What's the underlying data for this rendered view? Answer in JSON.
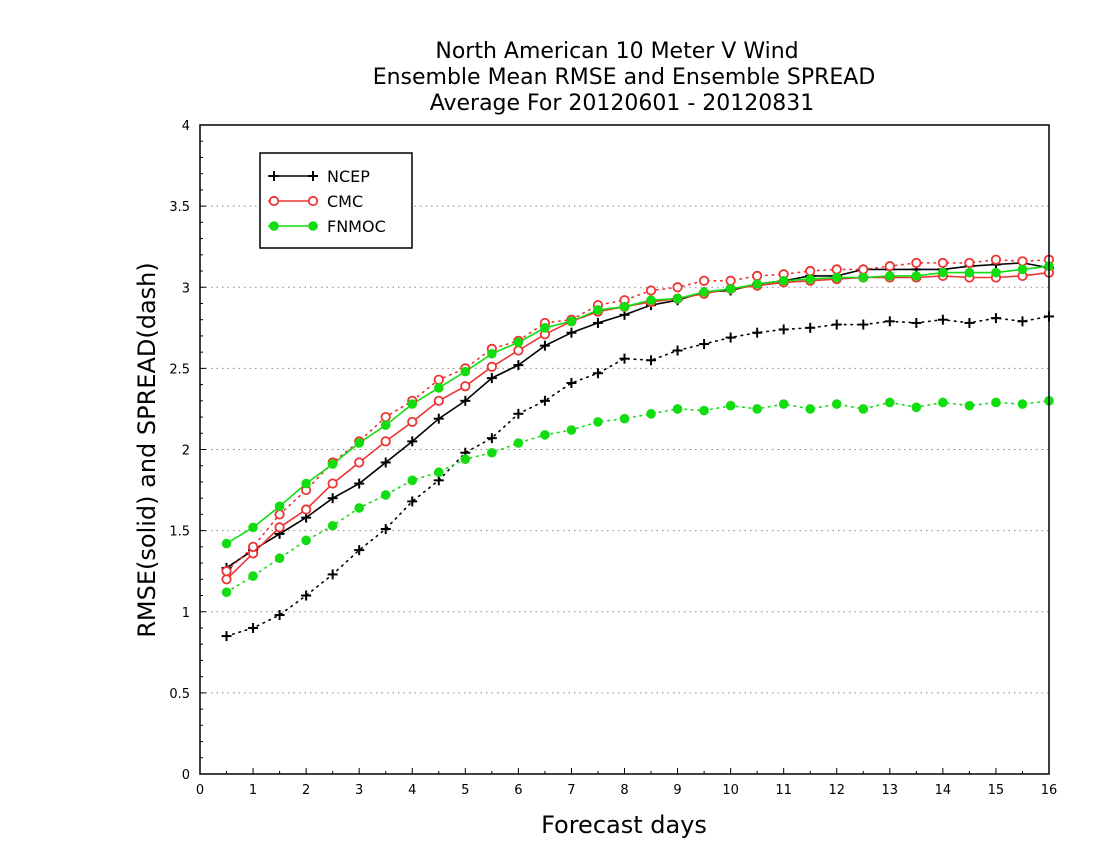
{
  "chart_data": {
    "type": "line",
    "title": [
      "North American 10 Meter V Wind",
      "Ensemble Mean RMSE and Ensemble SPREAD",
      "Average For 20120601 - 20120831"
    ],
    "xlabel": "Forecast days",
    "ylabel": "RMSE(solid) and SPREAD(dash)",
    "xlim": [
      0,
      16
    ],
    "ylim": [
      0,
      4
    ],
    "xticks": [
      "0",
      "1",
      "2",
      "3",
      "4",
      "5",
      "6",
      "7",
      "8",
      "9",
      "10",
      "11",
      "12",
      "13",
      "14",
      "15",
      "16"
    ],
    "yticks": [
      "0",
      "0.5",
      "1",
      "1.5",
      "2",
      "2.5",
      "3",
      "3.5",
      "4"
    ],
    "grid": "horizontal-dotted",
    "legend_position": "top-left",
    "x": [
      0.5,
      1,
      1.5,
      2,
      2.5,
      3,
      3.5,
      4,
      4.5,
      5,
      5.5,
      6,
      6.5,
      7,
      7.5,
      8,
      8.5,
      9,
      9.5,
      10,
      10.5,
      11,
      11.5,
      12,
      12.5,
      13,
      13.5,
      14,
      14.5,
      15,
      15.5,
      16
    ],
    "series": [
      {
        "name": "NCEP",
        "color": "#000000",
        "marker": "plus",
        "rmse": [
          1.27,
          1.38,
          1.48,
          1.58,
          1.7,
          1.79,
          1.92,
          2.05,
          2.19,
          2.3,
          2.44,
          2.52,
          2.64,
          2.72,
          2.78,
          2.83,
          2.89,
          2.92,
          2.97,
          2.98,
          3.02,
          3.04,
          3.07,
          3.07,
          3.11,
          3.11,
          3.11,
          3.11,
          3.13,
          3.14,
          3.15,
          3.12
        ],
        "spread": [
          0.85,
          0.9,
          0.98,
          1.1,
          1.23,
          1.38,
          1.51,
          1.68,
          1.81,
          1.98,
          2.07,
          2.22,
          2.3,
          2.41,
          2.47,
          2.56,
          2.55,
          2.61,
          2.65,
          2.69,
          2.72,
          2.74,
          2.75,
          2.77,
          2.77,
          2.79,
          2.78,
          2.8,
          2.78,
          2.81,
          2.79,
          2.82
        ]
      },
      {
        "name": "CMC",
        "color": "#ee3333",
        "marker": "open-circle",
        "rmse": [
          1.2,
          1.36,
          1.52,
          1.63,
          1.79,
          1.92,
          2.05,
          2.17,
          2.3,
          2.39,
          2.51,
          2.61,
          2.71,
          2.79,
          2.85,
          2.88,
          2.91,
          2.93,
          2.96,
          2.99,
          3.01,
          3.03,
          3.04,
          3.05,
          3.06,
          3.06,
          3.06,
          3.07,
          3.06,
          3.06,
          3.07,
          3.09
        ],
        "spread": [
          1.25,
          1.4,
          1.6,
          1.75,
          1.92,
          2.05,
          2.2,
          2.3,
          2.43,
          2.5,
          2.62,
          2.67,
          2.78,
          2.8,
          2.89,
          2.92,
          2.98,
          3.0,
          3.04,
          3.04,
          3.07,
          3.08,
          3.1,
          3.11,
          3.11,
          3.13,
          3.15,
          3.15,
          3.15,
          3.17,
          3.16,
          3.17
        ]
      },
      {
        "name": "FNMOC",
        "color": "#11dd11",
        "marker": "filled-circle",
        "rmse": [
          1.42,
          1.52,
          1.65,
          1.79,
          1.91,
          2.04,
          2.15,
          2.28,
          2.38,
          2.48,
          2.59,
          2.66,
          2.75,
          2.79,
          2.86,
          2.88,
          2.92,
          2.93,
          2.97,
          2.99,
          3.02,
          3.04,
          3.05,
          3.06,
          3.06,
          3.07,
          3.07,
          3.09,
          3.09,
          3.09,
          3.11,
          3.13
        ],
        "spread": [
          1.12,
          1.22,
          1.33,
          1.44,
          1.53,
          1.64,
          1.72,
          1.81,
          1.86,
          1.94,
          1.98,
          2.04,
          2.09,
          2.12,
          2.17,
          2.19,
          2.22,
          2.25,
          2.24,
          2.27,
          2.25,
          2.28,
          2.25,
          2.28,
          2.25,
          2.29,
          2.26,
          2.29,
          2.27,
          2.29,
          2.28,
          2.3
        ]
      }
    ]
  }
}
